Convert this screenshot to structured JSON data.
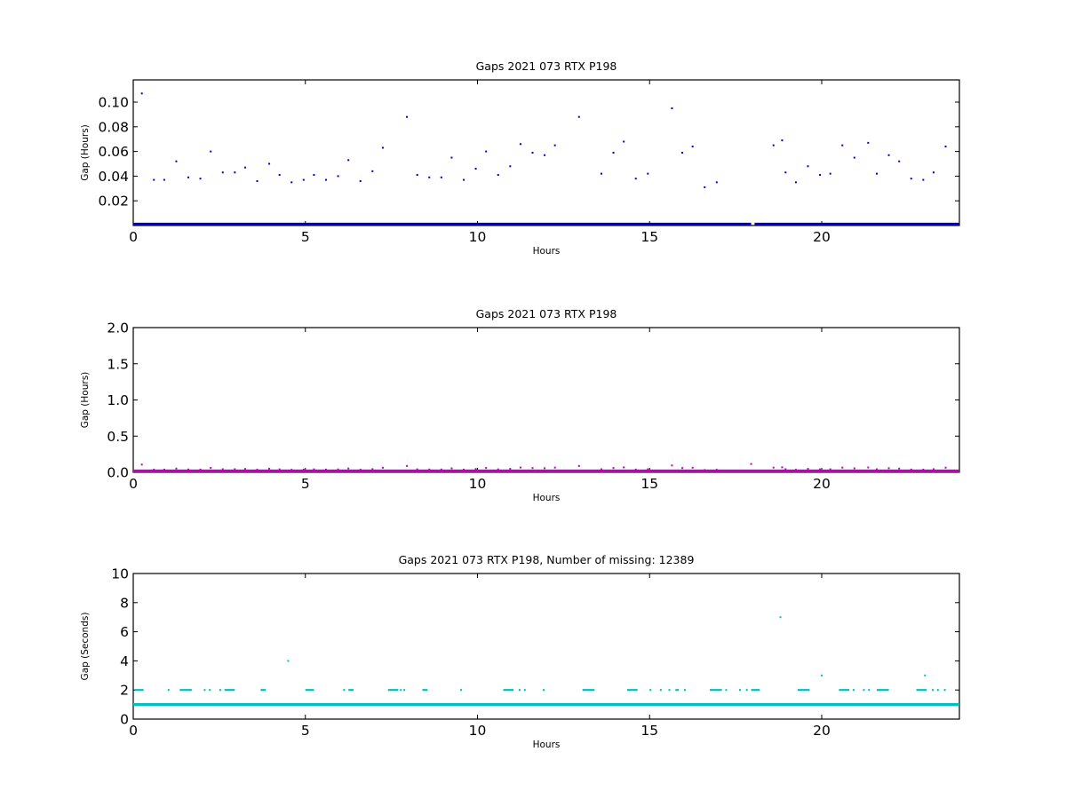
{
  "chart_data": [
    {
      "type": "scatter",
      "title": "Gaps 2021 073 RTX  P198",
      "xlabel": "Hours",
      "ylabel": "Gap (Hours)",
      "xlim": [
        0,
        24
      ],
      "ylim": [
        0,
        0.118
      ],
      "xticks": [
        "0",
        "5",
        "10",
        "15",
        "20"
      ],
      "xtick_values": [
        0,
        5,
        10,
        15,
        20
      ],
      "yticks": [
        "0.02",
        "0.04",
        "0.06",
        "0.08",
        "0.10"
      ],
      "ytick_values": [
        0.02,
        0.04,
        0.06,
        0.08,
        0.1
      ],
      "grid": false,
      "color": "#0000cc",
      "baseline_y": 0.0003,
      "baseline_x_range": [
        0,
        24
      ],
      "baseline_breaks": [
        [
          17.95,
          18.05
        ]
      ],
      "points": [
        [
          0.25,
          0.107
        ],
        [
          0.6,
          0.037
        ],
        [
          0.9,
          0.037
        ],
        [
          1.25,
          0.052
        ],
        [
          1.6,
          0.039
        ],
        [
          1.95,
          0.038
        ],
        [
          2.25,
          0.06
        ],
        [
          2.6,
          0.043
        ],
        [
          2.95,
          0.043
        ],
        [
          3.25,
          0.047
        ],
        [
          3.6,
          0.036
        ],
        [
          3.95,
          0.05
        ],
        [
          4.25,
          0.041
        ],
        [
          4.6,
          0.035
        ],
        [
          4.95,
          0.037
        ],
        [
          5.25,
          0.041
        ],
        [
          5.6,
          0.037
        ],
        [
          5.95,
          0.04
        ],
        [
          6.25,
          0.053
        ],
        [
          6.6,
          0.036
        ],
        [
          6.95,
          0.044
        ],
        [
          7.25,
          0.063
        ],
        [
          7.95,
          0.088
        ],
        [
          8.25,
          0.041
        ],
        [
          8.6,
          0.039
        ],
        [
          8.95,
          0.039
        ],
        [
          9.25,
          0.055
        ],
        [
          9.6,
          0.037
        ],
        [
          9.95,
          0.046
        ],
        [
          10.25,
          0.06
        ],
        [
          10.6,
          0.041
        ],
        [
          10.95,
          0.048
        ],
        [
          11.25,
          0.066
        ],
        [
          11.6,
          0.059
        ],
        [
          11.95,
          0.057
        ],
        [
          12.25,
          0.065
        ],
        [
          12.95,
          0.088
        ],
        [
          13.6,
          0.042
        ],
        [
          13.95,
          0.059
        ],
        [
          14.25,
          0.068
        ],
        [
          14.6,
          0.038
        ],
        [
          14.95,
          0.042
        ],
        [
          15.65,
          0.095
        ],
        [
          15.95,
          0.059
        ],
        [
          16.25,
          0.064
        ],
        [
          16.6,
          0.031
        ],
        [
          16.95,
          0.035
        ],
        [
          18.6,
          0.065
        ],
        [
          18.85,
          0.069
        ],
        [
          18.95,
          0.043
        ],
        [
          19.25,
          0.035
        ],
        [
          19.6,
          0.048
        ],
        [
          19.95,
          0.041
        ],
        [
          20.25,
          0.042
        ],
        [
          20.6,
          0.065
        ],
        [
          20.95,
          0.055
        ],
        [
          21.35,
          0.067
        ],
        [
          21.6,
          0.042
        ],
        [
          21.95,
          0.057
        ],
        [
          22.25,
          0.052
        ],
        [
          22.6,
          0.038
        ],
        [
          22.95,
          0.037
        ],
        [
          23.25,
          0.043
        ],
        [
          23.6,
          0.064
        ]
      ]
    },
    {
      "type": "scatter",
      "title": "Gaps 2021 073 RTX  P198",
      "xlabel": "Hours",
      "ylabel": "Gap (Hours)",
      "xlim": [
        0,
        24
      ],
      "ylim": [
        0,
        2.0
      ],
      "xticks": [
        "0",
        "5",
        "10",
        "15",
        "20"
      ],
      "xtick_values": [
        0,
        5,
        10,
        15,
        20
      ],
      "yticks": [
        "0.0",
        "0.5",
        "1.0",
        "1.5",
        "2.0"
      ],
      "ytick_values": [
        0.0,
        0.5,
        1.0,
        1.5,
        2.0
      ],
      "grid": false,
      "color": "#bf00bf",
      "baseline_y": 0.005,
      "baseline_x_range": [
        0,
        24
      ],
      "baseline_breaks": [],
      "points": [
        [
          0.25,
          0.107
        ],
        [
          0.6,
          0.037
        ],
        [
          0.9,
          0.037
        ],
        [
          1.25,
          0.052
        ],
        [
          1.6,
          0.039
        ],
        [
          1.95,
          0.038
        ],
        [
          2.25,
          0.06
        ],
        [
          2.6,
          0.043
        ],
        [
          2.95,
          0.043
        ],
        [
          3.25,
          0.047
        ],
        [
          3.6,
          0.036
        ],
        [
          3.95,
          0.05
        ],
        [
          4.25,
          0.041
        ],
        [
          4.6,
          0.035
        ],
        [
          4.95,
          0.037
        ],
        [
          5.25,
          0.041
        ],
        [
          5.6,
          0.037
        ],
        [
          5.95,
          0.04
        ],
        [
          6.25,
          0.053
        ],
        [
          6.6,
          0.036
        ],
        [
          6.95,
          0.044
        ],
        [
          7.25,
          0.063
        ],
        [
          7.95,
          0.088
        ],
        [
          8.25,
          0.041
        ],
        [
          8.6,
          0.039
        ],
        [
          8.95,
          0.039
        ],
        [
          9.25,
          0.055
        ],
        [
          9.6,
          0.037
        ],
        [
          9.95,
          0.046
        ],
        [
          10.25,
          0.06
        ],
        [
          10.6,
          0.041
        ],
        [
          10.95,
          0.048
        ],
        [
          11.25,
          0.066
        ],
        [
          11.6,
          0.059
        ],
        [
          11.95,
          0.057
        ],
        [
          12.25,
          0.065
        ],
        [
          12.95,
          0.088
        ],
        [
          13.6,
          0.042
        ],
        [
          13.95,
          0.059
        ],
        [
          14.25,
          0.068
        ],
        [
          14.6,
          0.038
        ],
        [
          14.95,
          0.042
        ],
        [
          15.65,
          0.095
        ],
        [
          15.95,
          0.059
        ],
        [
          16.25,
          0.064
        ],
        [
          16.6,
          0.031
        ],
        [
          16.95,
          0.035
        ],
        [
          17.95,
          0.115
        ],
        [
          18.6,
          0.065
        ],
        [
          18.85,
          0.069
        ],
        [
          18.95,
          0.043
        ],
        [
          19.25,
          0.035
        ],
        [
          19.6,
          0.048
        ],
        [
          19.95,
          0.041
        ],
        [
          20.25,
          0.042
        ],
        [
          20.6,
          0.065
        ],
        [
          20.95,
          0.055
        ],
        [
          21.35,
          0.067
        ],
        [
          21.6,
          0.042
        ],
        [
          21.95,
          0.057
        ],
        [
          22.25,
          0.052
        ],
        [
          22.6,
          0.038
        ],
        [
          22.95,
          0.037
        ],
        [
          23.25,
          0.043
        ],
        [
          23.6,
          0.064
        ]
      ]
    },
    {
      "type": "scatter",
      "title": "Gaps 2021 073 RTX  P198, Number of missing: 12389",
      "xlabel": "Hours",
      "ylabel": "Gap (Seconds)",
      "xlim": [
        0,
        24
      ],
      "ylim": [
        0,
        10
      ],
      "xticks": [
        "0",
        "5",
        "10",
        "15",
        "20"
      ],
      "xtick_values": [
        0,
        5,
        10,
        15,
        20
      ],
      "yticks": [
        "0",
        "2",
        "4",
        "6",
        "8",
        "10"
      ],
      "ytick_values": [
        0,
        2,
        4,
        6,
        8,
        10
      ],
      "grid": false,
      "color": "#00bfbf",
      "baseline_y": 1,
      "baseline_x_range": [
        0,
        24
      ],
      "baseline_breaks": [],
      "clusters_y": 2,
      "clusters": [
        [
          0.05,
          0.3
        ],
        [
          1.0,
          1.05
        ],
        [
          1.35,
          1.7
        ],
        [
          2.05,
          2.1
        ],
        [
          2.2,
          2.25
        ],
        [
          2.5,
          2.55
        ],
        [
          2.65,
          2.95
        ],
        [
          3.7,
          3.85
        ],
        [
          5.0,
          5.25
        ],
        [
          6.1,
          6.15
        ],
        [
          6.25,
          6.4
        ],
        [
          7.4,
          7.7
        ],
        [
          7.75,
          7.8
        ],
        [
          7.85,
          7.9
        ],
        [
          8.4,
          8.55
        ],
        [
          9.5,
          9.55
        ],
        [
          10.75,
          11.05
        ],
        [
          11.2,
          11.25
        ],
        [
          11.35,
          11.4
        ],
        [
          11.9,
          11.95
        ],
        [
          13.05,
          13.4
        ],
        [
          14.35,
          14.65
        ],
        [
          15.0,
          15.05
        ],
        [
          15.3,
          15.35
        ],
        [
          15.55,
          15.6
        ],
        [
          15.75,
          15.85
        ],
        [
          16.0,
          16.05
        ],
        [
          16.75,
          17.1
        ],
        [
          17.2,
          17.25
        ],
        [
          17.6,
          17.65
        ],
        [
          17.8,
          17.85
        ],
        [
          17.95,
          18.2
        ],
        [
          19.3,
          19.65
        ],
        [
          20.5,
          20.8
        ],
        [
          20.9,
          20.95
        ],
        [
          21.2,
          21.25
        ],
        [
          21.35,
          21.4
        ],
        [
          21.6,
          21.95
        ],
        [
          22.75,
          23.05
        ],
        [
          23.2,
          23.25
        ],
        [
          23.35,
          23.4
        ],
        [
          23.55,
          23.6
        ]
      ],
      "points": [
        [
          4.5,
          4.0
        ],
        [
          18.8,
          7.0
        ],
        [
          20.0,
          3.0
        ],
        [
          23.0,
          3.0
        ]
      ]
    }
  ]
}
